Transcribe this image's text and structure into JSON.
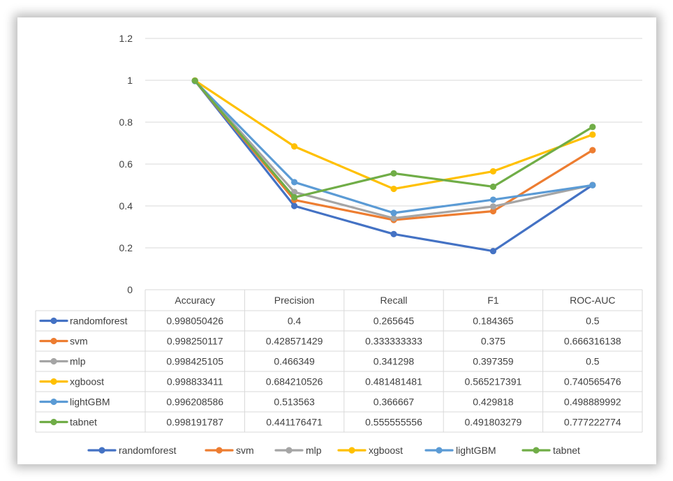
{
  "chart_data": {
    "type": "line",
    "categories": [
      "Accuracy",
      "Precision",
      "Recall",
      "F1",
      "ROC-AUC"
    ],
    "ylim": [
      0,
      1.2
    ],
    "yticks": [
      "0",
      "0.2",
      "0.4",
      "0.6",
      "0.8",
      "1",
      "1.2"
    ],
    "grid": true,
    "legend_position": "bottom",
    "series": [
      {
        "name": "randomforest",
        "color": "#4472c4",
        "values": [
          0.998050426,
          0.4,
          0.265645,
          0.184365,
          0.5
        ],
        "labels": [
          "0.998050426",
          "0.4",
          "0.265645",
          "0.184365",
          "0.5"
        ]
      },
      {
        "name": "svm",
        "color": "#ed7d31",
        "values": [
          0.998250117,
          0.428571429,
          0.333333333,
          0.375,
          0.666316138
        ],
        "labels": [
          "0.998250117",
          "0.428571429",
          "0.333333333",
          "0.375",
          "0.666316138"
        ]
      },
      {
        "name": "mlp",
        "color": "#a5a5a5",
        "values": [
          0.998425105,
          0.466349,
          0.341298,
          0.397359,
          0.5
        ],
        "labels": [
          "0.998425105",
          "0.466349",
          "0.341298",
          "0.397359",
          "0.5"
        ]
      },
      {
        "name": "xgboost",
        "color": "#ffc000",
        "values": [
          0.998833411,
          0.684210526,
          0.481481481,
          0.565217391,
          0.740565476
        ],
        "labels": [
          "0.998833411",
          "0.684210526",
          "0.481481481",
          "0.565217391",
          "0.740565476"
        ]
      },
      {
        "name": "lightGBM",
        "color": "#5b9bd5",
        "values": [
          0.996208586,
          0.513563,
          0.366667,
          0.429818,
          0.498889992
        ],
        "labels": [
          "0.996208586",
          "0.513563",
          "0.366667",
          "0.429818",
          "0.498889992"
        ]
      },
      {
        "name": "tabnet",
        "color": "#70ad47",
        "values": [
          0.998191787,
          0.441176471,
          0.555555556,
          0.491803279,
          0.777222774
        ],
        "labels": [
          "0.998191787",
          "0.441176471",
          "0.555555556",
          "0.491803279",
          "0.777222774"
        ]
      }
    ]
  }
}
